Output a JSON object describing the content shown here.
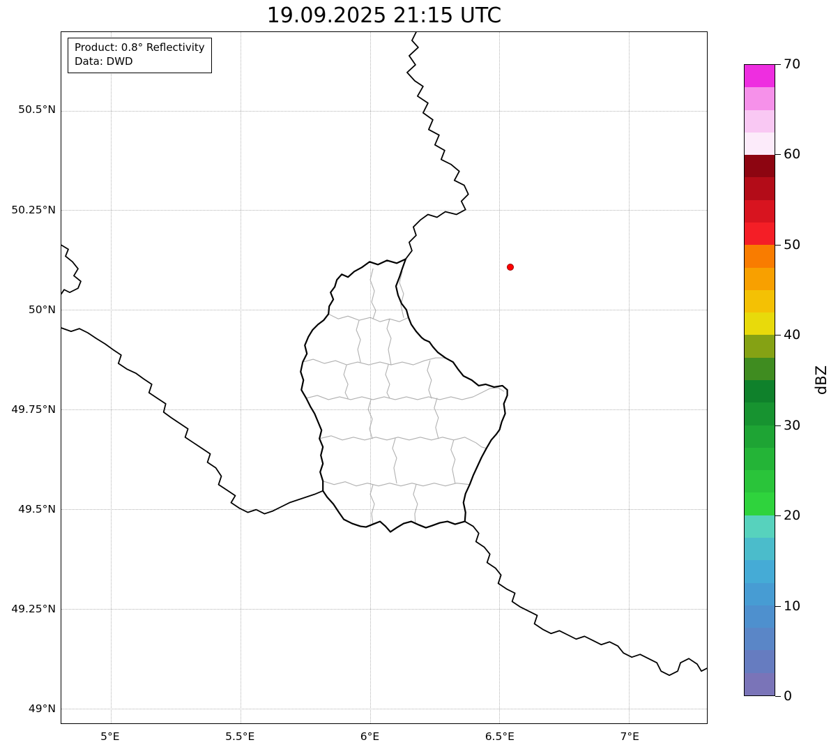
{
  "title": "19.09.2025 21:15 UTC",
  "annotation": {
    "line1": "Product: 0.8° Reflectivity",
    "line2": "Data: DWD"
  },
  "map": {
    "extent": {
      "lon_min": 4.81,
      "lon_max": 7.3,
      "lat_min": 48.963,
      "lat_max": 50.697
    },
    "x_ticks": [
      {
        "value": 5.0,
        "label": "5°E"
      },
      {
        "value": 5.5,
        "label": "5.5°E"
      },
      {
        "value": 6.0,
        "label": "6°E"
      },
      {
        "value": 6.5,
        "label": "6.5°E"
      },
      {
        "value": 7.0,
        "label": "7°E"
      }
    ],
    "y_ticks": [
      {
        "value": 50.5,
        "label": "50.5°N"
      },
      {
        "value": 50.25,
        "label": "50.25°N"
      },
      {
        "value": 50.0,
        "label": "50°N"
      },
      {
        "value": 49.75,
        "label": "49.75°N"
      },
      {
        "value": 49.5,
        "label": "49.5°N"
      },
      {
        "value": 49.25,
        "label": "49.25°N"
      },
      {
        "value": 49.0,
        "label": "49°N"
      }
    ],
    "radar_marker": {
      "lon": 6.543,
      "lat": 50.107,
      "color": "#ff0000"
    }
  },
  "colorbar": {
    "label": "dBZ",
    "min": 0,
    "max": 70,
    "ticks": [
      {
        "value": 0,
        "label": "0"
      },
      {
        "value": 10,
        "label": "10"
      },
      {
        "value": 20,
        "label": "20"
      },
      {
        "value": 30,
        "label": "30"
      },
      {
        "value": 40,
        "label": "40"
      },
      {
        "value": 50,
        "label": "50"
      },
      {
        "value": 60,
        "label": "60"
      },
      {
        "value": 70,
        "label": "70"
      }
    ],
    "segments": [
      {
        "from": 0,
        "to": 2.5,
        "color": "#7a74b8"
      },
      {
        "from": 2.5,
        "to": 5,
        "color": "#667cc0"
      },
      {
        "from": 5,
        "to": 7.5,
        "color": "#5a86c7"
      },
      {
        "from": 7.5,
        "to": 10,
        "color": "#4e90ce"
      },
      {
        "from": 10,
        "to": 12.5,
        "color": "#479cd3"
      },
      {
        "from": 12.5,
        "to": 15,
        "color": "#45abd6"
      },
      {
        "from": 15,
        "to": 17.5,
        "color": "#4bbccb"
      },
      {
        "from": 17.5,
        "to": 20,
        "color": "#57d2bd"
      },
      {
        "from": 20,
        "to": 22.5,
        "color": "#2fd33d"
      },
      {
        "from": 22.5,
        "to": 25,
        "color": "#2ac43a"
      },
      {
        "from": 25,
        "to": 27.5,
        "color": "#24b437"
      },
      {
        "from": 27.5,
        "to": 30,
        "color": "#1ea434"
      },
      {
        "from": 30,
        "to": 32.5,
        "color": "#179330"
      },
      {
        "from": 32.5,
        "to": 35,
        "color": "#0f812b"
      },
      {
        "from": 35,
        "to": 37.5,
        "color": "#3f8c20"
      },
      {
        "from": 37.5,
        "to": 40,
        "color": "#85a214"
      },
      {
        "from": 40,
        "to": 42.5,
        "color": "#e8da0b"
      },
      {
        "from": 42.5,
        "to": 45,
        "color": "#f4c104"
      },
      {
        "from": 45,
        "to": 47.5,
        "color": "#f8a000"
      },
      {
        "from": 47.5,
        "to": 50,
        "color": "#f97c00"
      },
      {
        "from": 50,
        "to": 52.5,
        "color": "#f41e26"
      },
      {
        "from": 52.5,
        "to": 55,
        "color": "#d8141f"
      },
      {
        "from": 55,
        "to": 57.5,
        "color": "#b30c18"
      },
      {
        "from": 57.5,
        "to": 60,
        "color": "#8d0511"
      },
      {
        "from": 60,
        "to": 62.5,
        "color": "#fcebfa"
      },
      {
        "from": 62.5,
        "to": 65,
        "color": "#f9c8f3"
      },
      {
        "from": 65,
        "to": 67.5,
        "color": "#f691ea"
      },
      {
        "from": 67.5,
        "to": 70,
        "color": "#ee2ee0"
      }
    ]
  }
}
